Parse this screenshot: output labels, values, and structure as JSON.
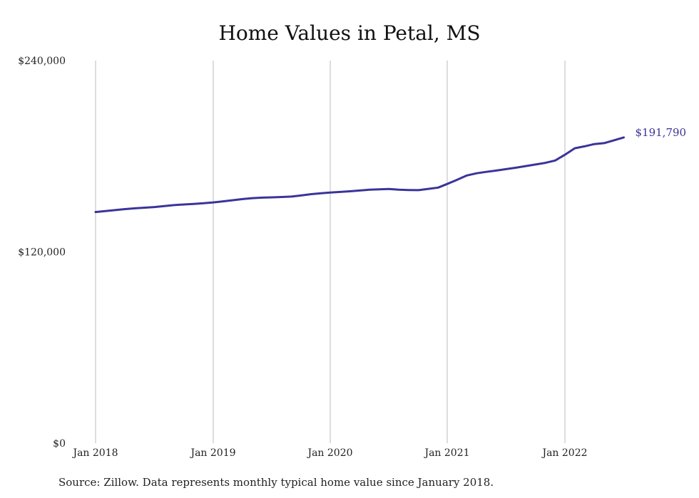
{
  "chart_data": {
    "type": "line",
    "title": "Home Values in Petal, MS",
    "xlabel": "",
    "ylabel": "",
    "ylim": [
      0,
      240000
    ],
    "yticks": [
      {
        "value": 0,
        "label": "$0"
      },
      {
        "value": 120000,
        "label": "$120,000"
      },
      {
        "value": 240000,
        "label": "$240,000"
      }
    ],
    "xticks": [
      {
        "value": "2018-01",
        "label": "Jan 2018"
      },
      {
        "value": "2019-01",
        "label": "Jan 2019"
      },
      {
        "value": "2020-01",
        "label": "Jan 2020"
      },
      {
        "value": "2021-01",
        "label": "Jan 2021"
      },
      {
        "value": "2022-01",
        "label": "Jan 2022"
      }
    ],
    "grid": "vertical",
    "line_color": "#3b3499",
    "end_label": "$191,790",
    "series": [
      {
        "x": [
          "2018-01",
          "2018-02",
          "2018-03",
          "2018-04",
          "2018-05",
          "2018-06",
          "2018-07",
          "2018-08",
          "2018-09",
          "2018-10",
          "2018-11",
          "2018-12",
          "2019-01",
          "2019-02",
          "2019-03",
          "2019-04",
          "2019-05",
          "2019-06",
          "2019-07",
          "2019-08",
          "2019-09",
          "2019-10",
          "2019-11",
          "2019-12",
          "2020-01",
          "2020-02",
          "2020-03",
          "2020-04",
          "2020-05",
          "2020-06",
          "2020-07",
          "2020-08",
          "2020-09",
          "2020-10",
          "2020-11",
          "2020-12",
          "2021-01",
          "2021-02",
          "2021-03",
          "2021-04",
          "2021-05",
          "2021-06",
          "2021-07",
          "2021-08",
          "2021-09",
          "2021-10",
          "2021-11",
          "2021-12",
          "2022-01",
          "2022-02",
          "2022-03",
          "2022-04",
          "2022-05",
          "2022-06",
          "2022-07"
        ],
        "values": [
          145000,
          145600,
          146200,
          146800,
          147300,
          147700,
          148100,
          148700,
          149300,
          149700,
          150100,
          150500,
          151000,
          151700,
          152400,
          153100,
          153700,
          154000,
          154200,
          154400,
          154700,
          155400,
          156200,
          156800,
          157200,
          157600,
          158000,
          158500,
          159000,
          159200,
          159400,
          159000,
          158800,
          158700,
          159500,
          160300,
          162600,
          165200,
          167900,
          169300,
          170200,
          171000,
          171900,
          172800,
          173800,
          174800,
          175800,
          177300,
          180900,
          185000,
          186200,
          187600,
          188200,
          190000,
          191790
        ]
      }
    ]
  },
  "source_note": "Source: Zillow. Data represents monthly typical home value since January 2018."
}
